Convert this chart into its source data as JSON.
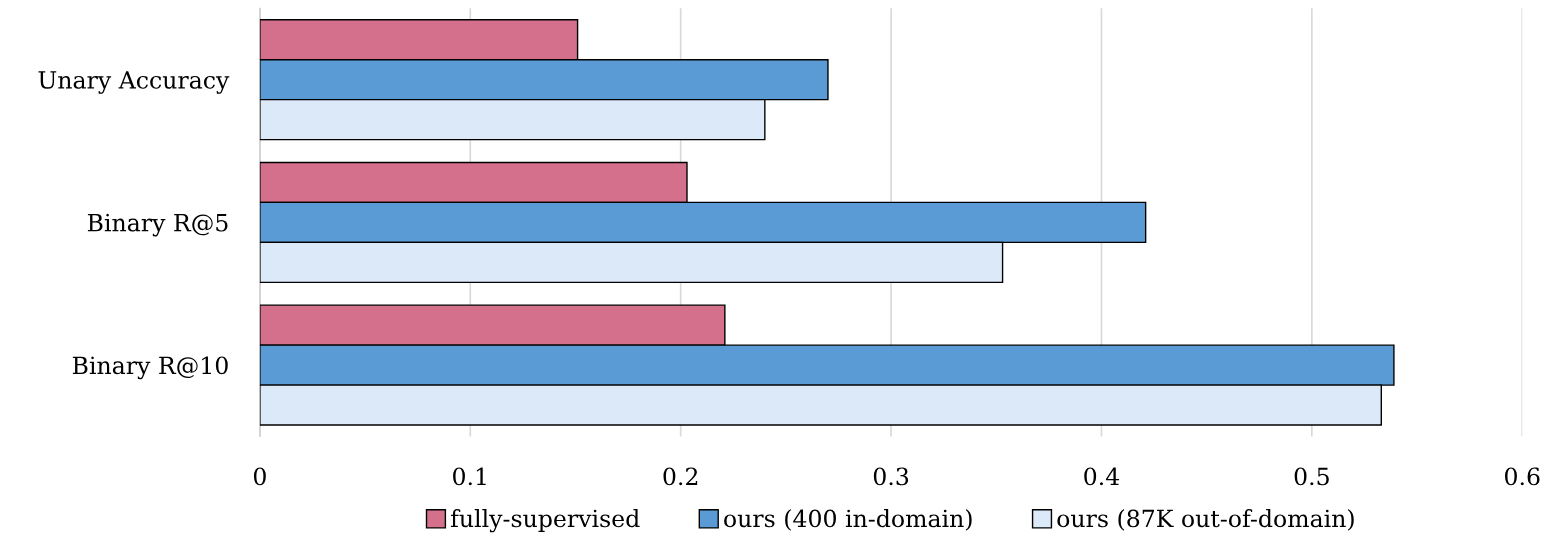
{
  "chart_data": {
    "type": "bar",
    "orientation": "horizontal",
    "categories": [
      "Unary Accuracy",
      "Binary R@5",
      "Binary R@10"
    ],
    "series": [
      {
        "name": "fully-supervised",
        "color": "#d4708c",
        "values": [
          0.151,
          0.203,
          0.221
        ]
      },
      {
        "name": "ours (400 in-domain)",
        "color": "#5b9bd5",
        "values": [
          0.27,
          0.421,
          0.539
        ]
      },
      {
        "name": "ours (87K out-of-domain)",
        "color": "#dce9f8",
        "values": [
          0.24,
          0.353,
          0.533
        ]
      }
    ],
    "xlim": [
      0,
      0.6
    ],
    "xticks": [
      {
        "value": 0,
        "label": "0"
      },
      0.1,
      0.2,
      0.3,
      0.4,
      0.5,
      0.6
    ],
    "grid": "x",
    "legend": "bottom"
  }
}
